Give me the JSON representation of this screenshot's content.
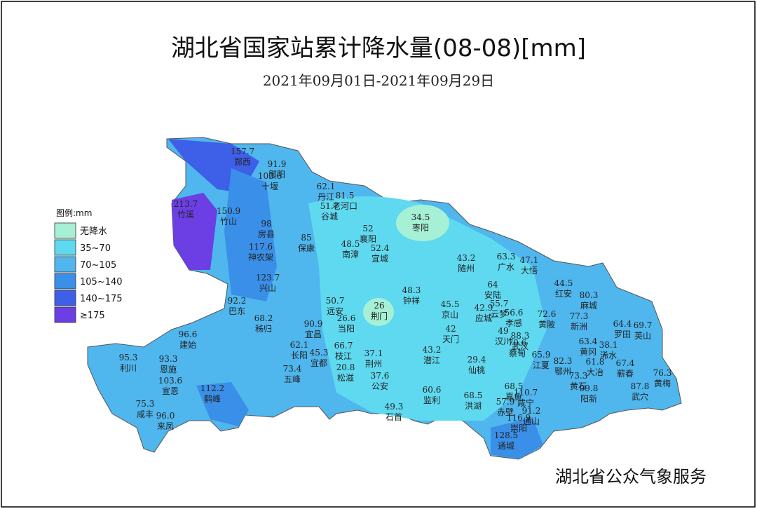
{
  "title": "湖北省国家站累计降水量(08-08)[mm]",
  "subtitle": "2021年09月01日-2021年09月29日",
  "legend": {
    "title": "图例:mm",
    "items": [
      {
        "label": "无降水",
        "color": "#a6f0d6"
      },
      {
        "label": "35~70",
        "color": "#5fd9f0"
      },
      {
        "label": "70~105",
        "color": "#4fb6ee"
      },
      {
        "label": "105~140",
        "color": "#3a8fe8"
      },
      {
        "label": "140~175",
        "color": "#3e5fe8"
      },
      {
        "label": "≥175",
        "color": "#6b3fe4"
      }
    ]
  },
  "stations": [
    {
      "value": "157.7",
      "name": "郧西"
    },
    {
      "value": "91.9",
      "name": "郧阳"
    },
    {
      "value": "103.6",
      "name": "十堰"
    },
    {
      "value": "62.1",
      "name": "丹江"
    },
    {
      "value": "81.5",
      "name": "老河口"
    },
    {
      "value": "51.7",
      "name": "谷城"
    },
    {
      "value": "213.7",
      "name": "竹溪"
    },
    {
      "value": "150.9",
      "name": "竹山"
    },
    {
      "value": "98",
      "name": "房县"
    },
    {
      "value": "85",
      "name": "保康"
    },
    {
      "value": "52",
      "name": "襄阳"
    },
    {
      "value": "34.5",
      "name": "枣阳"
    },
    {
      "value": "48.5",
      "name": "南漳"
    },
    {
      "value": "52.4",
      "name": "宜城"
    },
    {
      "value": "117.6",
      "name": "神农架"
    },
    {
      "value": "43.2",
      "name": "随州"
    },
    {
      "value": "63.3",
      "name": "广水"
    },
    {
      "value": "47.1",
      "name": "大悟"
    },
    {
      "value": "123.7",
      "name": "兴山"
    },
    {
      "value": "92.2",
      "name": "巴东"
    },
    {
      "value": "50.7",
      "name": "远安"
    },
    {
      "value": "26",
      "name": "荆门"
    },
    {
      "value": "48.3",
      "name": "钟祥"
    },
    {
      "value": "64",
      "name": "安陆"
    },
    {
      "value": "44.5",
      "name": "红安"
    },
    {
      "value": "80.3",
      "name": "麻城"
    },
    {
      "value": "45.5",
      "name": "京山"
    },
    {
      "value": "42.9",
      "name": "应城"
    },
    {
      "value": "55.7",
      "name": "云梦"
    },
    {
      "value": "56.6",
      "name": "孝感"
    },
    {
      "value": "77.3",
      "name": "新洲"
    },
    {
      "value": "72.6",
      "name": "黄陂"
    },
    {
      "value": "68.2",
      "name": "秭归"
    },
    {
      "value": "90.9",
      "name": "宜昌"
    },
    {
      "value": "26.6",
      "name": "当阳"
    },
    {
      "value": "42",
      "name": "天门"
    },
    {
      "value": "49",
      "name": "汉川"
    },
    {
      "value": "88.3",
      "name": "武汉"
    },
    {
      "value": "70.6",
      "name": "蔡甸"
    },
    {
      "value": "64.4",
      "name": "罗田"
    },
    {
      "value": "69.7",
      "name": "英山"
    },
    {
      "value": "96.6",
      "name": "建始"
    },
    {
      "value": "63.4",
      "name": "黄冈"
    },
    {
      "value": "38.1",
      "name": "浠水"
    },
    {
      "value": "62.1",
      "name": "长阳"
    },
    {
      "value": "66.7",
      "name": "枝江"
    },
    {
      "value": "45.3",
      "name": "宜都"
    },
    {
      "value": "37.1",
      "name": "荆州"
    },
    {
      "value": "43.2",
      "name": "潜江"
    },
    {
      "value": "29.4",
      "name": "仙桃"
    },
    {
      "value": "65.9",
      "name": "江夏"
    },
    {
      "value": "82.3",
      "name": "鄂州"
    },
    {
      "value": "73.3",
      "name": "黄石"
    },
    {
      "value": "61.8",
      "name": "大冶"
    },
    {
      "value": "67.4",
      "name": "蕲春"
    },
    {
      "value": "76.3",
      "name": "黄梅"
    },
    {
      "value": "95.3",
      "name": "利川"
    },
    {
      "value": "93.3",
      "name": "恩施"
    },
    {
      "value": "103.6",
      "name": "宣恩"
    },
    {
      "value": "73.4",
      "name": "五峰"
    },
    {
      "value": "20.8",
      "name": "松滋"
    },
    {
      "value": "37.6",
      "name": "公安"
    },
    {
      "value": "112.2",
      "name": "鹤峰"
    },
    {
      "value": "60.6",
      "name": "监利"
    },
    {
      "value": "68.5",
      "name": "洪湖"
    },
    {
      "value": "68.5",
      "name": "嘉鱼"
    },
    {
      "value": "57.9",
      "name": "赤壁"
    },
    {
      "value": "110.7",
      "name": "咸宁"
    },
    {
      "value": "99.8",
      "name": "阳新"
    },
    {
      "value": "87.8",
      "name": "武穴"
    },
    {
      "value": "49.3",
      "name": "石首"
    },
    {
      "value": "91.2",
      "name": "通山"
    },
    {
      "value": "75.3",
      "name": "咸丰"
    },
    {
      "value": "96.0",
      "name": "来凤"
    },
    {
      "value": "116.9",
      "name": "崇阳"
    },
    {
      "value": "128.5",
      "name": "通城"
    }
  ],
  "watermark": "湖北省公众气象服务"
}
